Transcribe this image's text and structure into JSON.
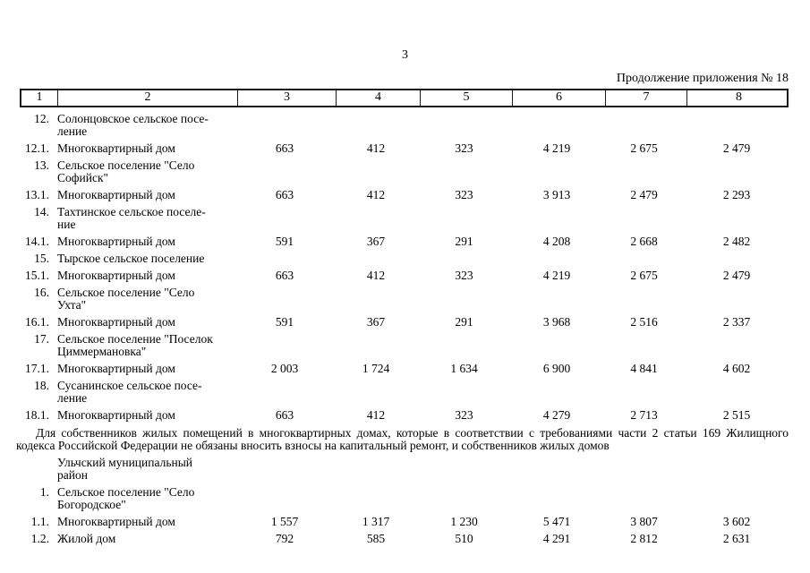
{
  "page": {
    "number": "3",
    "continuation": "Продолжение приложения № 18"
  },
  "table": {
    "columns": [
      "1",
      "2",
      "3",
      "4",
      "5",
      "6",
      "7",
      "8"
    ],
    "rows": [
      {
        "type": "item",
        "num": "12.",
        "name": "Солонцовское сельское посе-\nление",
        "values": [
          "",
          "",
          "",
          "",
          "",
          ""
        ]
      },
      {
        "type": "item",
        "num": "12.1.",
        "name": "Многоквартирный дом",
        "values": [
          "663",
          "412",
          "323",
          "4 219",
          "2 675",
          "2 479"
        ]
      },
      {
        "type": "item",
        "num": "13.",
        "name": "Сельское поселение \"Село\nСофийск\"",
        "values": [
          "",
          "",
          "",
          "",
          "",
          ""
        ]
      },
      {
        "type": "item",
        "num": "13.1.",
        "name": "Многоквартирный дом",
        "values": [
          "663",
          "412",
          "323",
          "3 913",
          "2 479",
          "2 293"
        ]
      },
      {
        "type": "item",
        "num": "14.",
        "name": "Тахтинское сельское поселе-\nние",
        "values": [
          "",
          "",
          "",
          "",
          "",
          ""
        ]
      },
      {
        "type": "item",
        "num": "14.1.",
        "name": "Многоквартирный дом",
        "values": [
          "591",
          "367",
          "291",
          "4 208",
          "2 668",
          "2 482"
        ]
      },
      {
        "type": "item",
        "num": "15.",
        "name": "Тырское сельское поселение",
        "values": [
          "",
          "",
          "",
          "",
          "",
          ""
        ]
      },
      {
        "type": "item",
        "num": "15.1.",
        "name": "Многоквартирный дом",
        "values": [
          "663",
          "412",
          "323",
          "4 219",
          "2 675",
          "2 479"
        ]
      },
      {
        "type": "item",
        "num": "16.",
        "name": "Сельское поселение \"Село\nУхта\"",
        "values": [
          "",
          "",
          "",
          "",
          "",
          ""
        ]
      },
      {
        "type": "item",
        "num": "16.1.",
        "name": "Многоквартирный дом",
        "values": [
          "591",
          "367",
          "291",
          "3 968",
          "2 516",
          "2 337"
        ]
      },
      {
        "type": "item",
        "num": "17.",
        "name": "Сельское поселение \"Поселок\nЦиммермановка\"",
        "values": [
          "",
          "",
          "",
          "",
          "",
          ""
        ]
      },
      {
        "type": "item",
        "num": "17.1.",
        "name": "Многоквартирный дом",
        "values": [
          "2 003",
          "1 724",
          "1 634",
          "6 900",
          "4 841",
          "4 602"
        ]
      },
      {
        "type": "item",
        "num": "18.",
        "name": "Сусанинское сельское посе-\nление",
        "values": [
          "",
          "",
          "",
          "",
          "",
          ""
        ]
      },
      {
        "type": "item",
        "num": "18.1.",
        "name": "Многоквартирный дом",
        "values": [
          "663",
          "412",
          "323",
          "4 279",
          "2 713",
          "2 515"
        ]
      },
      {
        "type": "note",
        "text": "Для собственников жилых помещений в многоквартирных домах, которые в соответствии с требованиями части 2 статьи 169 Жилищного кодекса Российской Федерации не обязаны вносить взносы на капитальный ремонт, и собственников жилых домов"
      },
      {
        "type": "item",
        "num": "",
        "name": "Ульчский муниципальный\nрайон",
        "values": [
          "",
          "",
          "",
          "",
          "",
          ""
        ]
      },
      {
        "type": "item",
        "num": "1.",
        "name": "Сельское поселение \"Село\nБогородское\"",
        "values": [
          "",
          "",
          "",
          "",
          "",
          ""
        ]
      },
      {
        "type": "item",
        "num": "1.1.",
        "name": "Многоквартирный дом",
        "values": [
          "1 557",
          "1 317",
          "1 230",
          "5 471",
          "3 807",
          "3 602"
        ]
      },
      {
        "type": "item",
        "num": "1.2.",
        "name": "Жилой дом",
        "values": [
          "792",
          "585",
          "510",
          "4 291",
          "2 812",
          "2 631"
        ]
      }
    ]
  }
}
